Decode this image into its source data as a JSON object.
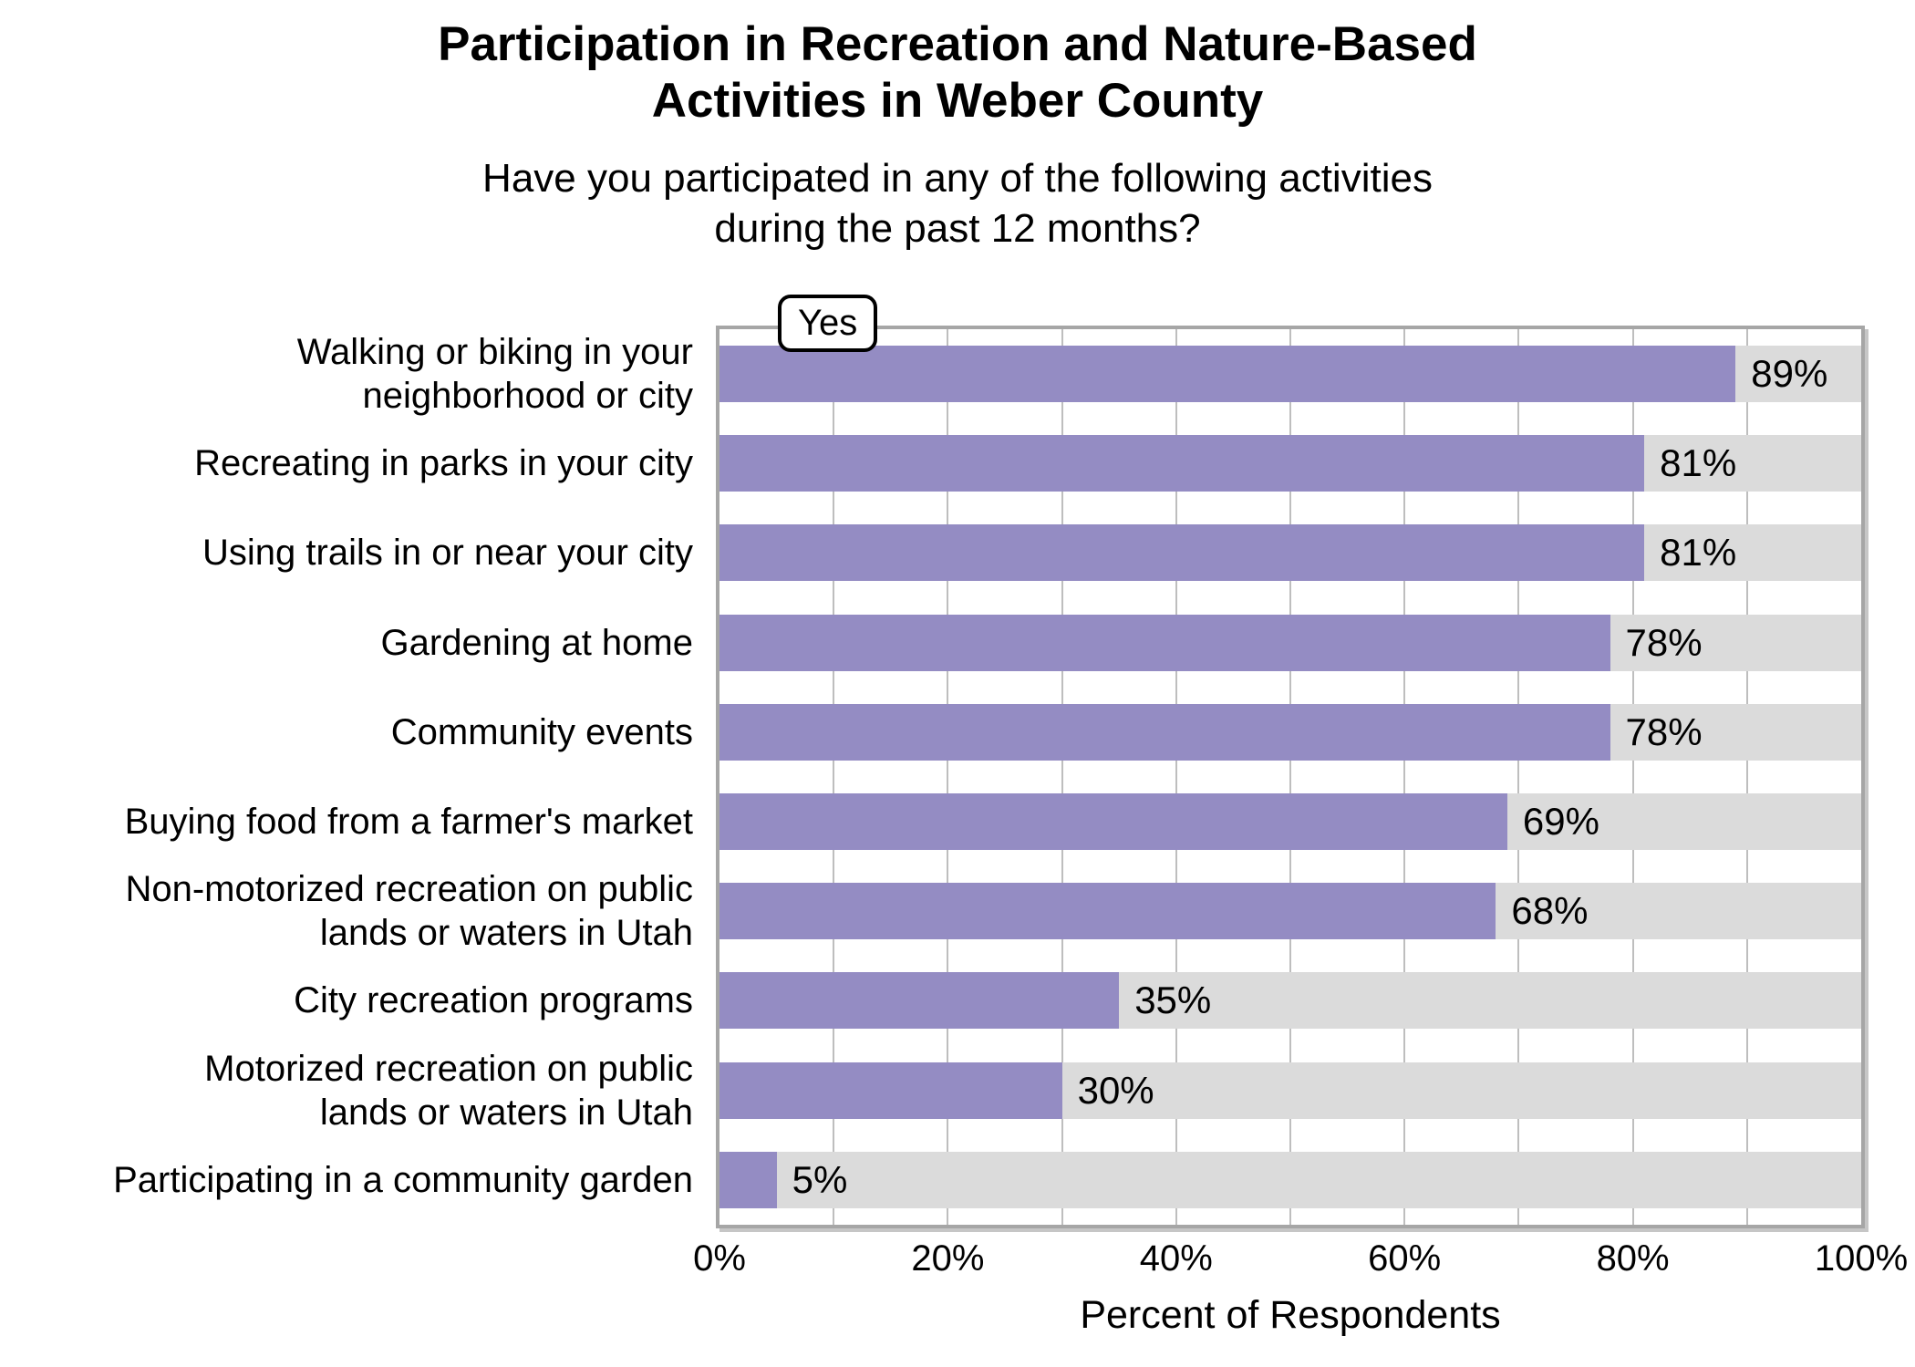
{
  "chart_data": {
    "type": "bar",
    "orientation": "horizontal",
    "title": "Participation in Recreation and Nature-Based\nActivities in Weber County",
    "subtitle": "Have you participated in any of the following activities\nduring the past 12 months?",
    "xlabel": "Percent of Respondents",
    "legend": {
      "label": "Yes",
      "position": "top-left-overlapping-panel"
    },
    "categories": [
      "Walking or biking in your\nneighborhood or city",
      "Recreating in parks in your city",
      "Using trails in or near your city",
      "Gardening at home",
      "Community events",
      "Buying food from a farmer's market",
      "Non-motorized recreation on public\nlands or waters in Utah",
      "City recreation programs",
      "Motorized recreation on public\nlands or waters in Utah",
      "Participating in a community garden"
    ],
    "values": [
      89,
      81,
      81,
      78,
      78,
      69,
      68,
      35,
      30,
      5
    ],
    "value_labels": [
      "89%",
      "81%",
      "81%",
      "78%",
      "78%",
      "69%",
      "68%",
      "35%",
      "30%",
      "5%"
    ],
    "x_ticks": [
      {
        "value": 0,
        "label": "0%"
      },
      {
        "value": 20,
        "label": "20%"
      },
      {
        "value": 40,
        "label": "40%"
      },
      {
        "value": 60,
        "label": "60%"
      },
      {
        "value": 80,
        "label": "80%"
      },
      {
        "value": 100,
        "label": "100%"
      }
    ],
    "xlim": [
      0,
      100
    ],
    "grid": {
      "vertical_minor_percents": [
        10,
        20,
        30,
        40,
        50,
        60,
        70,
        80,
        90
      ]
    },
    "colors": {
      "bar": "#948cc3",
      "track": "#dbdbdb",
      "gridline": "#bebebe",
      "panel_border": "#a6a6a6",
      "text": "#000000",
      "background": "#ffffff"
    }
  }
}
